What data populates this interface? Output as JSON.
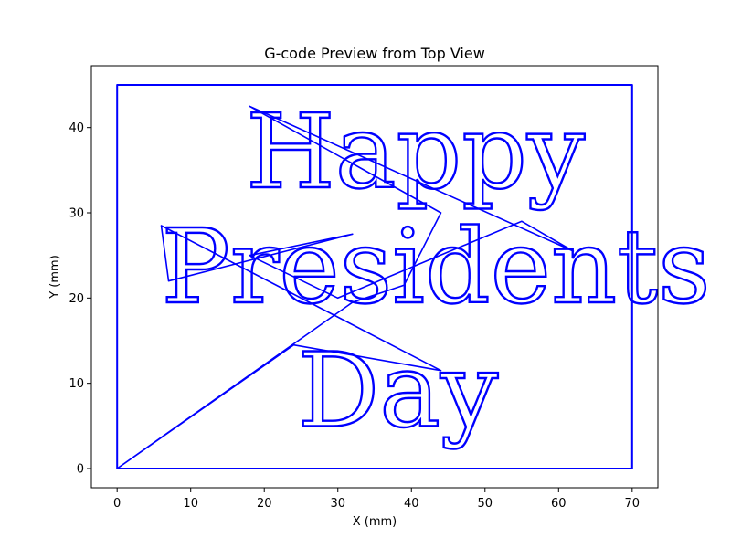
{
  "chart_data": {
    "type": "line",
    "title": "G-code Preview from Top View",
    "xlabel": "X (mm)",
    "ylabel": "Y (mm)",
    "xlim": [
      -3.5,
      73.5
    ],
    "ylim": [
      -2.25,
      47.25
    ],
    "xticks": [
      0,
      10,
      20,
      30,
      40,
      50,
      60,
      70
    ],
    "yticks": [
      0,
      10,
      20,
      30,
      40
    ],
    "grid": false,
    "line_color": "#0000ff",
    "series": [
      {
        "kind": "border",
        "points": [
          [
            0,
            0
          ],
          [
            70,
            0
          ],
          [
            70,
            45
          ],
          [
            0,
            45
          ],
          [
            0,
            0
          ]
        ]
      },
      {
        "kind": "travel",
        "points": [
          [
            0,
            0
          ],
          [
            24,
            14.5
          ],
          [
            44,
            11.5
          ],
          [
            6,
            28.5
          ],
          [
            7,
            22
          ],
          [
            32,
            27.5
          ],
          [
            18,
            25
          ],
          [
            30,
            20
          ],
          [
            55,
            29
          ],
          [
            62,
            25.5
          ],
          [
            18,
            42.5
          ],
          [
            44,
            30
          ],
          [
            39,
            21.5
          ],
          [
            32,
            19.5
          ],
          [
            0,
            0
          ]
        ]
      }
    ],
    "text_paths": [
      {
        "text": "Happy",
        "x": 17.5,
        "y": 33,
        "size_mm": 12
      },
      {
        "text": "Presidents",
        "x": 6,
        "y": 19.5,
        "size_mm": 12
      },
      {
        "text": "Day",
        "x": 24.5,
        "y": 5,
        "size_mm": 12
      }
    ]
  }
}
